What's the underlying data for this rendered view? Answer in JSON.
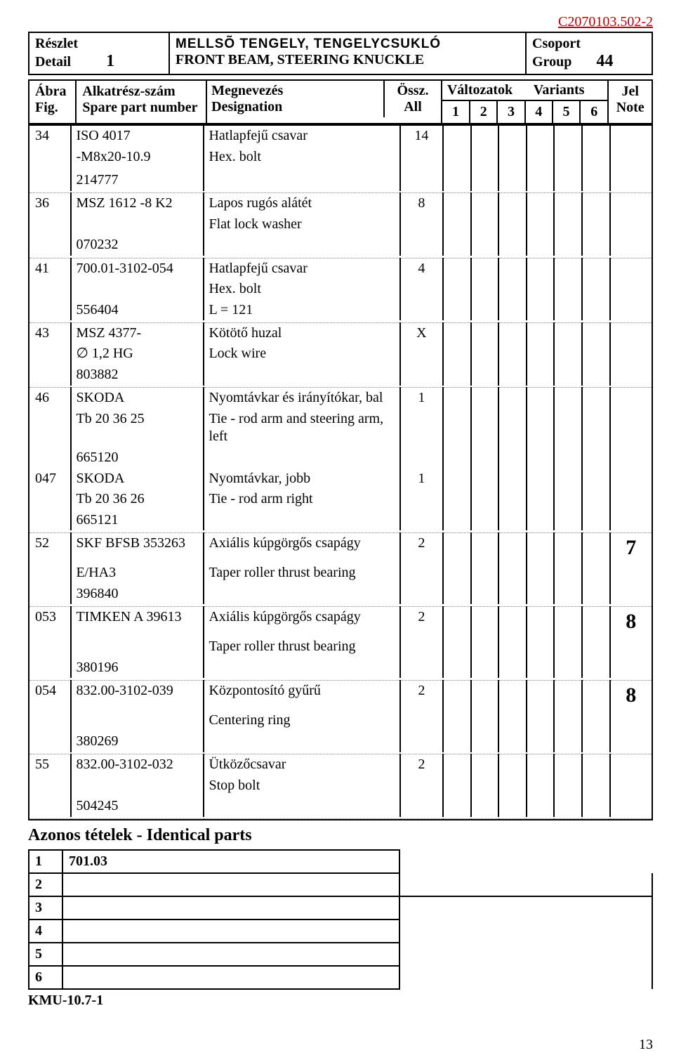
{
  "docref": "C2070103.502-2",
  "header": {
    "left": {
      "hu": "Részlet",
      "en": "Detail",
      "num": "1"
    },
    "center": {
      "hu": "MELLSÕ TENGELY, TENGELYCSUKLÓ",
      "en": "FRONT BEAM, STEERING KNUCKLE"
    },
    "right": {
      "hu": "Csoport",
      "en": "Group",
      "num": "44"
    }
  },
  "colhdr": {
    "fig_hu": "Ábra",
    "fig_en": "Fig.",
    "part_hu": "Alkatrész-szám",
    "part_en": "Spare part number",
    "des_hu": "Megnevezés",
    "des_en": "Designation",
    "all_hu": "Össz.",
    "all_en": "All",
    "variants_hu": "Változatok",
    "variants_en": "Variants",
    "v1": "1",
    "v2": "2",
    "v3": "3",
    "v4": "4",
    "v5": "5",
    "v6": "6",
    "note_hu": "Jel",
    "note_en": "Note"
  },
  "rows": [
    {
      "fig": "34",
      "part": [
        "ISO 4017",
        "-M8x20-10.9",
        "",
        "214777"
      ],
      "des_s": "Hatlapfejű csavar",
      "des": "Hex. bolt",
      "all": "14",
      "note": ""
    },
    {
      "fig": "36",
      "part": [
        "MSZ 1612  -8 K2",
        "",
        "070232"
      ],
      "des_s": "",
      "des": "Lapos rugós alátét\nFlat lock washer",
      "all": "8",
      "note": ""
    },
    {
      "fig": "41",
      "part": [
        "700.01-3102-054",
        "",
        "556404"
      ],
      "des_s": "Hatlapfejű csavar",
      "des": "Hex. bolt\nL = 121",
      "all": "4",
      "note": ""
    },
    {
      "fig": "43",
      "part": [
        "MSZ 4377-",
        "∅ 1,2 HG",
        "803882"
      ],
      "des_s": "Kötötő huzal",
      "des": "Lock wire",
      "all": "X",
      "note": ""
    },
    {
      "fig": "46",
      "part": [
        "SKODA",
        "Tb 20 36 25",
        "665120"
      ],
      "des_s": "",
      "des": "Nyomtávkar és irányítókar, bal\nTie - rod arm and steering arm, left",
      "all": "1",
      "note": ""
    },
    {
      "fig": "047",
      "part": [
        "SKODA",
        "Tb 20 36 26",
        "665121"
      ],
      "des_s": "",
      "des": "Nyomtávkar, jobb\nTie - rod arm right",
      "all": "1",
      "note": ""
    },
    {
      "fig": "52",
      "part": [
        "SKF BFSB 353263",
        "E/HA3",
        "396840"
      ],
      "des_s": "Axiális kúpgörgős csapágy",
      "des": "Taper roller thrust bearing",
      "all": "2",
      "note": "7"
    },
    {
      "fig": "053",
      "part": [
        "TIMKEN A 39613",
        "",
        "380196"
      ],
      "des_s": "Axiális kúpgörgős csapágy",
      "des": "Taper roller thrust bearing",
      "all": "2",
      "note": "8"
    },
    {
      "fig": "054",
      "part": [
        "832.00-3102-039",
        "",
        "380269"
      ],
      "des_s": "Központosító gyűrű",
      "des": "Centering ring",
      "all": "2",
      "note": "8"
    },
    {
      "fig": "55",
      "part": [
        "832.00-3102-032",
        "",
        "504245"
      ],
      "des_s": "Ütközőcsavar",
      "des": "Stop bolt",
      "all": "2",
      "note": ""
    }
  ],
  "identical": {
    "title": "Azonos tételek - Identical parts",
    "items": [
      "701.03",
      "",
      "",
      "",
      "",
      ""
    ],
    "nums": [
      "1",
      "2",
      "3",
      "4",
      "5",
      "6"
    ]
  },
  "footer": "KMU-10.7-1",
  "pagenum": "13"
}
